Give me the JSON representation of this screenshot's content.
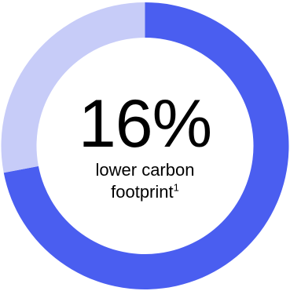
{
  "chart_data": {
    "type": "pie",
    "variant": "donut",
    "slices": [
      {
        "value": 72,
        "color": "#4a5ef0"
      },
      {
        "value": 28,
        "color": "#c7ccf8"
      }
    ],
    "start": "top-center",
    "direction": "clockwise",
    "center": {
      "value": "16%",
      "caption_line1": "lower carbon",
      "caption_line2": "footprint",
      "footnote_mark": "1"
    }
  }
}
